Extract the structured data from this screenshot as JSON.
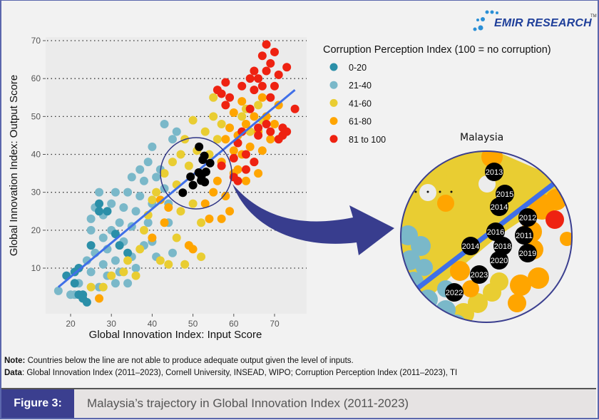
{
  "logo": {
    "text": "EMIR RESEARCH",
    "tm": "TM"
  },
  "notes": {
    "note_label": "Note:",
    "note_text": " Countries below the line are not able to produce adequate output given the level of inputs.",
    "data_label": "Data",
    "data_text": ": Global Innovation Index (2011–2023), Cornell University, INSEAD, WIPO; Corruption Perception Index (2011–2023), TI"
  },
  "footer": {
    "figure_label": "Figure 3:",
    "title": "Malaysia’s trajectory in Global Innovation Index (2011-2023)"
  },
  "chart_data": {
    "type": "scatter",
    "xlabel": "Global Innovation Index: Input Score",
    "ylabel": "Global Innovation Index: Output Score",
    "xlim": [
      14.4,
      78
    ],
    "ylim": [
      -2,
      71
    ],
    "xticks": [
      20,
      30,
      40,
      50,
      60,
      70
    ],
    "yticks": [
      10,
      20,
      30,
      40,
      50,
      60,
      70
    ],
    "grid": "horizontal dotted",
    "legend_title": "Corruption Perception Index (100 = no corruption)",
    "legend_placement": "top-right",
    "regression_line": [
      [
        17,
        5
      ],
      [
        75,
        57
      ]
    ],
    "series": [
      {
        "name": "21-40",
        "color": "#7ab8c9",
        "points": [
          [
            17,
            4
          ],
          [
            20,
            3
          ],
          [
            21,
            3
          ],
          [
            22,
            6
          ],
          [
            24,
            12
          ],
          [
            25,
            9
          ],
          [
            26,
            14
          ],
          [
            25,
            20
          ],
          [
            25,
            23
          ],
          [
            26,
            26
          ],
          [
            27,
            30
          ],
          [
            28,
            24
          ],
          [
            28,
            18
          ],
          [
            28,
            11
          ],
          [
            29,
            8
          ],
          [
            29,
            15
          ],
          [
            30,
            20
          ],
          [
            30,
            27
          ],
          [
            31,
            30
          ],
          [
            31,
            12
          ],
          [
            32,
            22
          ],
          [
            32,
            9
          ],
          [
            33,
            17
          ],
          [
            33,
            26
          ],
          [
            34,
            30
          ],
          [
            34,
            6
          ],
          [
            35,
            34
          ],
          [
            35,
            21
          ],
          [
            35,
            13
          ],
          [
            36,
            25
          ],
          [
            37,
            29
          ],
          [
            37,
            36
          ],
          [
            38,
            16
          ],
          [
            38,
            33
          ],
          [
            39,
            38
          ],
          [
            39,
            22
          ],
          [
            40,
            42
          ],
          [
            40,
            27
          ],
          [
            41,
            34
          ],
          [
            42,
            36
          ],
          [
            43,
            31
          ],
          [
            43,
            48
          ],
          [
            44,
            27
          ],
          [
            45,
            44
          ],
          [
            46,
            46
          ],
          [
            44,
            22
          ],
          [
            40,
            17
          ],
          [
            36,
            10
          ],
          [
            31,
            6
          ],
          [
            27,
            5
          ],
          [
            45,
            14
          ],
          [
            41,
            13
          ]
        ]
      },
      {
        "name": "0-20",
        "color": "#2b8fa8",
        "points": [
          [
            19,
            8
          ],
          [
            21,
            9
          ],
          [
            21,
            6
          ],
          [
            22,
            3
          ],
          [
            23,
            3
          ],
          [
            23,
            2
          ],
          [
            24,
            1
          ],
          [
            27,
            25
          ],
          [
            27,
            27
          ],
          [
            29,
            25
          ],
          [
            31,
            19
          ],
          [
            32,
            16
          ],
          [
            34,
            14
          ],
          [
            25,
            16
          ],
          [
            22,
            10
          ]
        ]
      },
      {
        "name": "41-60",
        "color": "#e9cd32",
        "points": [
          [
            25,
            5
          ],
          [
            28,
            5
          ],
          [
            30,
            8
          ],
          [
            33,
            9
          ],
          [
            34,
            12
          ],
          [
            36,
            8
          ],
          [
            37,
            15
          ],
          [
            38,
            20
          ],
          [
            39,
            24
          ],
          [
            40,
            28
          ],
          [
            41,
            30
          ],
          [
            42,
            12
          ],
          [
            43,
            35
          ],
          [
            44,
            11
          ],
          [
            45,
            38
          ],
          [
            46,
            18
          ],
          [
            46,
            32
          ],
          [
            47,
            40
          ],
          [
            47,
            25
          ],
          [
            48,
            44
          ],
          [
            48,
            11
          ],
          [
            49,
            37
          ],
          [
            50,
            49
          ],
          [
            50,
            27
          ],
          [
            51,
            41
          ],
          [
            52,
            22
          ],
          [
            52,
            13
          ],
          [
            53,
            46
          ],
          [
            54,
            40
          ],
          [
            55,
            50
          ],
          [
            55,
            55
          ],
          [
            56,
            44
          ],
          [
            57,
            48
          ],
          [
            62,
            50
          ],
          [
            63,
            52
          ],
          [
            64,
            46
          ],
          [
            66,
            53
          ],
          [
            67,
            49
          ]
        ]
      },
      {
        "name": "61-80",
        "color": "#ffa500",
        "points": [
          [
            27,
            2
          ],
          [
            40,
            18
          ],
          [
            42,
            28
          ],
          [
            43,
            22
          ],
          [
            44,
            26
          ],
          [
            49,
            16
          ],
          [
            50,
            15
          ],
          [
            53,
            27
          ],
          [
            54,
            23
          ],
          [
            55,
            30
          ],
          [
            56,
            33
          ],
          [
            57,
            23
          ],
          [
            58,
            29
          ],
          [
            59,
            25
          ],
          [
            57,
            38
          ],
          [
            58,
            44
          ],
          [
            59,
            47
          ],
          [
            60,
            41
          ],
          [
            60,
            51
          ],
          [
            61,
            36
          ],
          [
            61,
            45
          ],
          [
            62,
            54
          ],
          [
            62,
            40
          ],
          [
            63,
            33
          ],
          [
            63,
            48
          ],
          [
            64,
            42
          ],
          [
            65,
            50
          ],
          [
            65,
            38
          ],
          [
            66,
            46
          ],
          [
            67,
            55
          ],
          [
            67,
            41
          ],
          [
            68,
            50
          ],
          [
            69,
            44
          ],
          [
            70,
            48
          ],
          [
            71,
            53
          ],
          [
            66,
            35
          ],
          [
            60,
            35
          ]
        ]
      },
      {
        "name": "81 to 100",
        "color": "#ee2211",
        "points": [
          [
            56,
            57
          ],
          [
            57,
            56
          ],
          [
            58,
            59
          ],
          [
            58,
            53
          ],
          [
            59,
            55
          ],
          [
            57,
            37
          ],
          [
            60,
            39
          ],
          [
            60,
            34
          ],
          [
            61,
            33
          ],
          [
            61,
            43
          ],
          [
            62,
            46
          ],
          [
            62,
            58
          ],
          [
            63,
            40
          ],
          [
            63,
            36
          ],
          [
            64,
            60
          ],
          [
            64,
            52
          ],
          [
            65,
            38
          ],
          [
            65,
            57
          ],
          [
            65,
            62
          ],
          [
            66,
            60
          ],
          [
            66,
            45
          ],
          [
            67,
            66
          ],
          [
            67,
            58
          ],
          [
            68,
            69
          ],
          [
            68,
            62
          ],
          [
            68,
            48
          ],
          [
            69,
            64
          ],
          [
            69,
            55
          ],
          [
            69,
            46
          ],
          [
            70,
            67
          ],
          [
            70,
            58
          ],
          [
            71,
            44
          ],
          [
            72,
            45
          ],
          [
            72,
            47
          ],
          [
            73,
            46
          ],
          [
            73,
            63
          ],
          [
            75,
            52
          ],
          [
            71,
            61
          ],
          [
            66,
            47
          ]
        ]
      }
    ],
    "highlight": {
      "name": "Malaysia",
      "color": "#000000",
      "points": [
        {
          "year": "2013",
          "x": 51.5,
          "y": 42.0
        },
        {
          "year": "2015",
          "x": 52.8,
          "y": 39.6
        },
        {
          "year": "2014",
          "x": 52.4,
          "y": 38.6
        },
        {
          "year": "2012",
          "x": 54.2,
          "y": 37.7
        },
        {
          "year": "2011",
          "x": 53.2,
          "y": 35.4
        },
        {
          "year": "2016",
          "x": 51.4,
          "y": 35.2
        },
        {
          "year": "2018",
          "x": 52.1,
          "y": 34.3
        },
        {
          "year": "2014",
          "x": 49.4,
          "y": 34.1
        },
        {
          "year": "2020",
          "x": 52.0,
          "y": 33.1
        },
        {
          "year": "2019",
          "x": 52.9,
          "y": 32.7
        },
        {
          "year": "2023",
          "x": 50.0,
          "y": 31.9
        },
        {
          "year": "2022",
          "x": 47.5,
          "y": 29.9
        }
      ]
    },
    "inset_title": "Malaysia"
  }
}
